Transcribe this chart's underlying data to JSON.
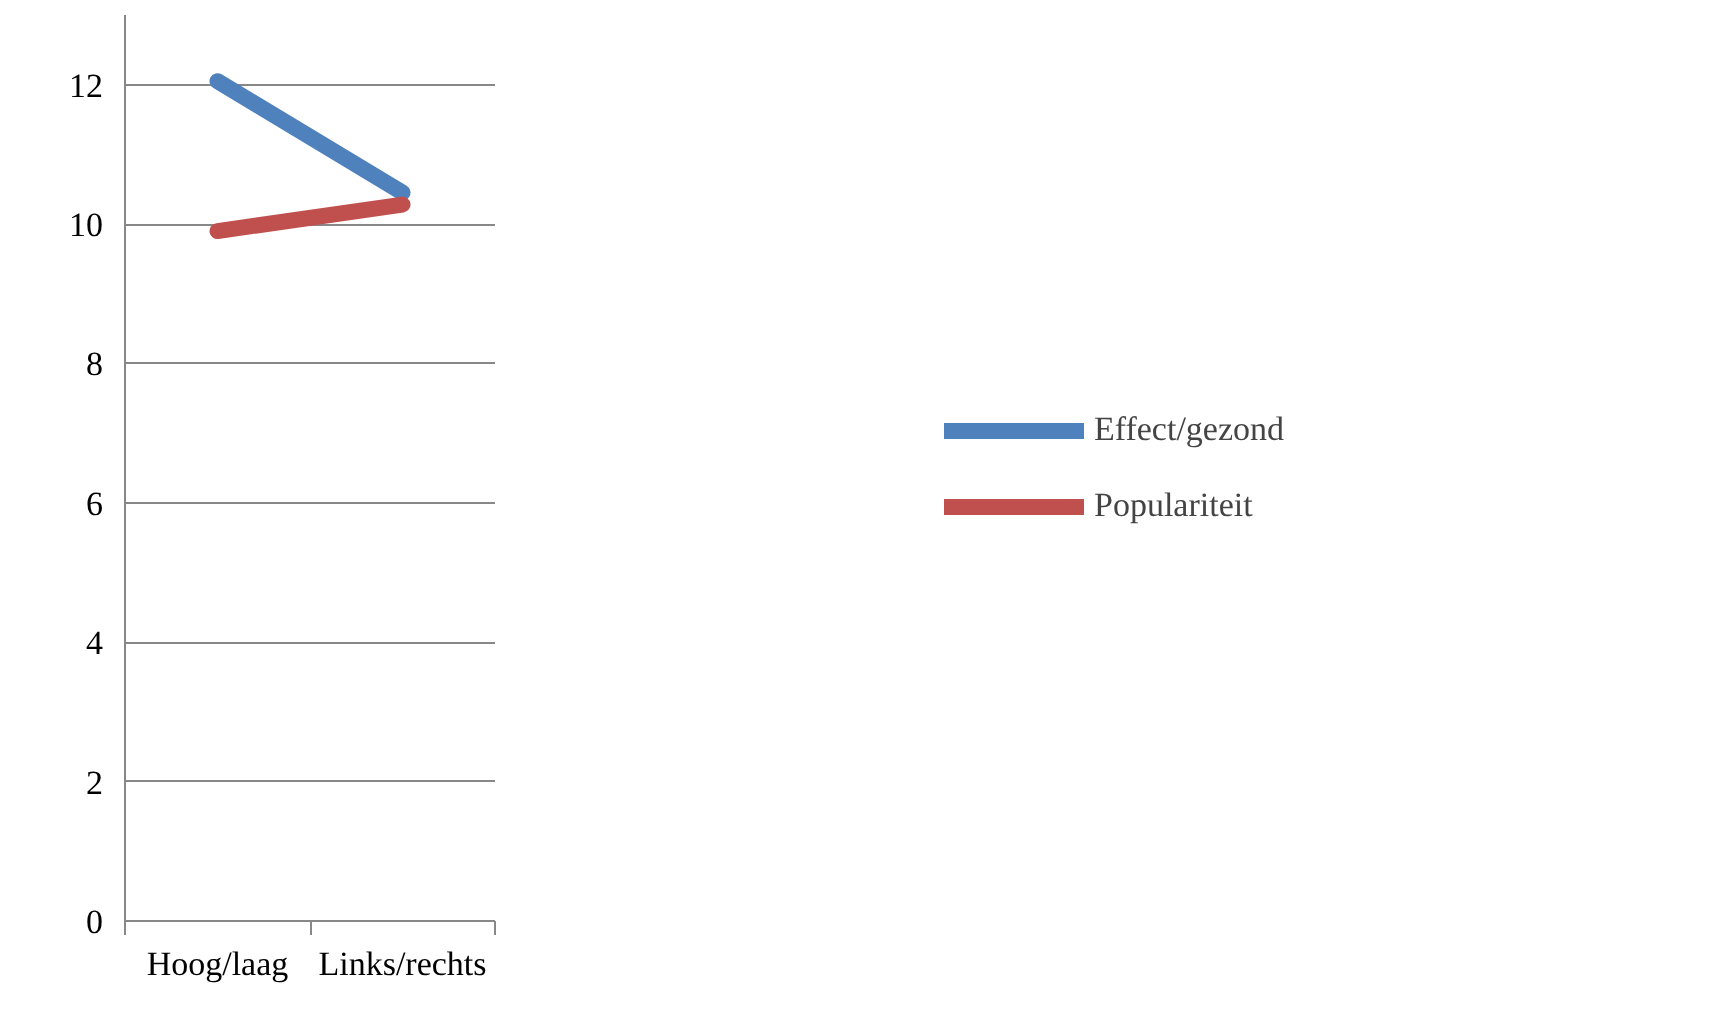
{
  "chart_data": {
    "type": "line",
    "categories": [
      "Hoog/laag",
      "Links/rechts"
    ],
    "series": [
      {
        "name": "Effect/gezond",
        "color": "#4f81bd",
        "values": [
          12.05,
          10.45
        ]
      },
      {
        "name": "Populariteit",
        "color": "#c0504d",
        "values": [
          9.9,
          10.28
        ]
      }
    ],
    "ylim": [
      0,
      13
    ],
    "yticks": [
      0,
      2,
      4,
      6,
      8,
      10,
      12
    ],
    "grid": "y",
    "legend": "right",
    "marker": "none",
    "line_style": "solid"
  }
}
